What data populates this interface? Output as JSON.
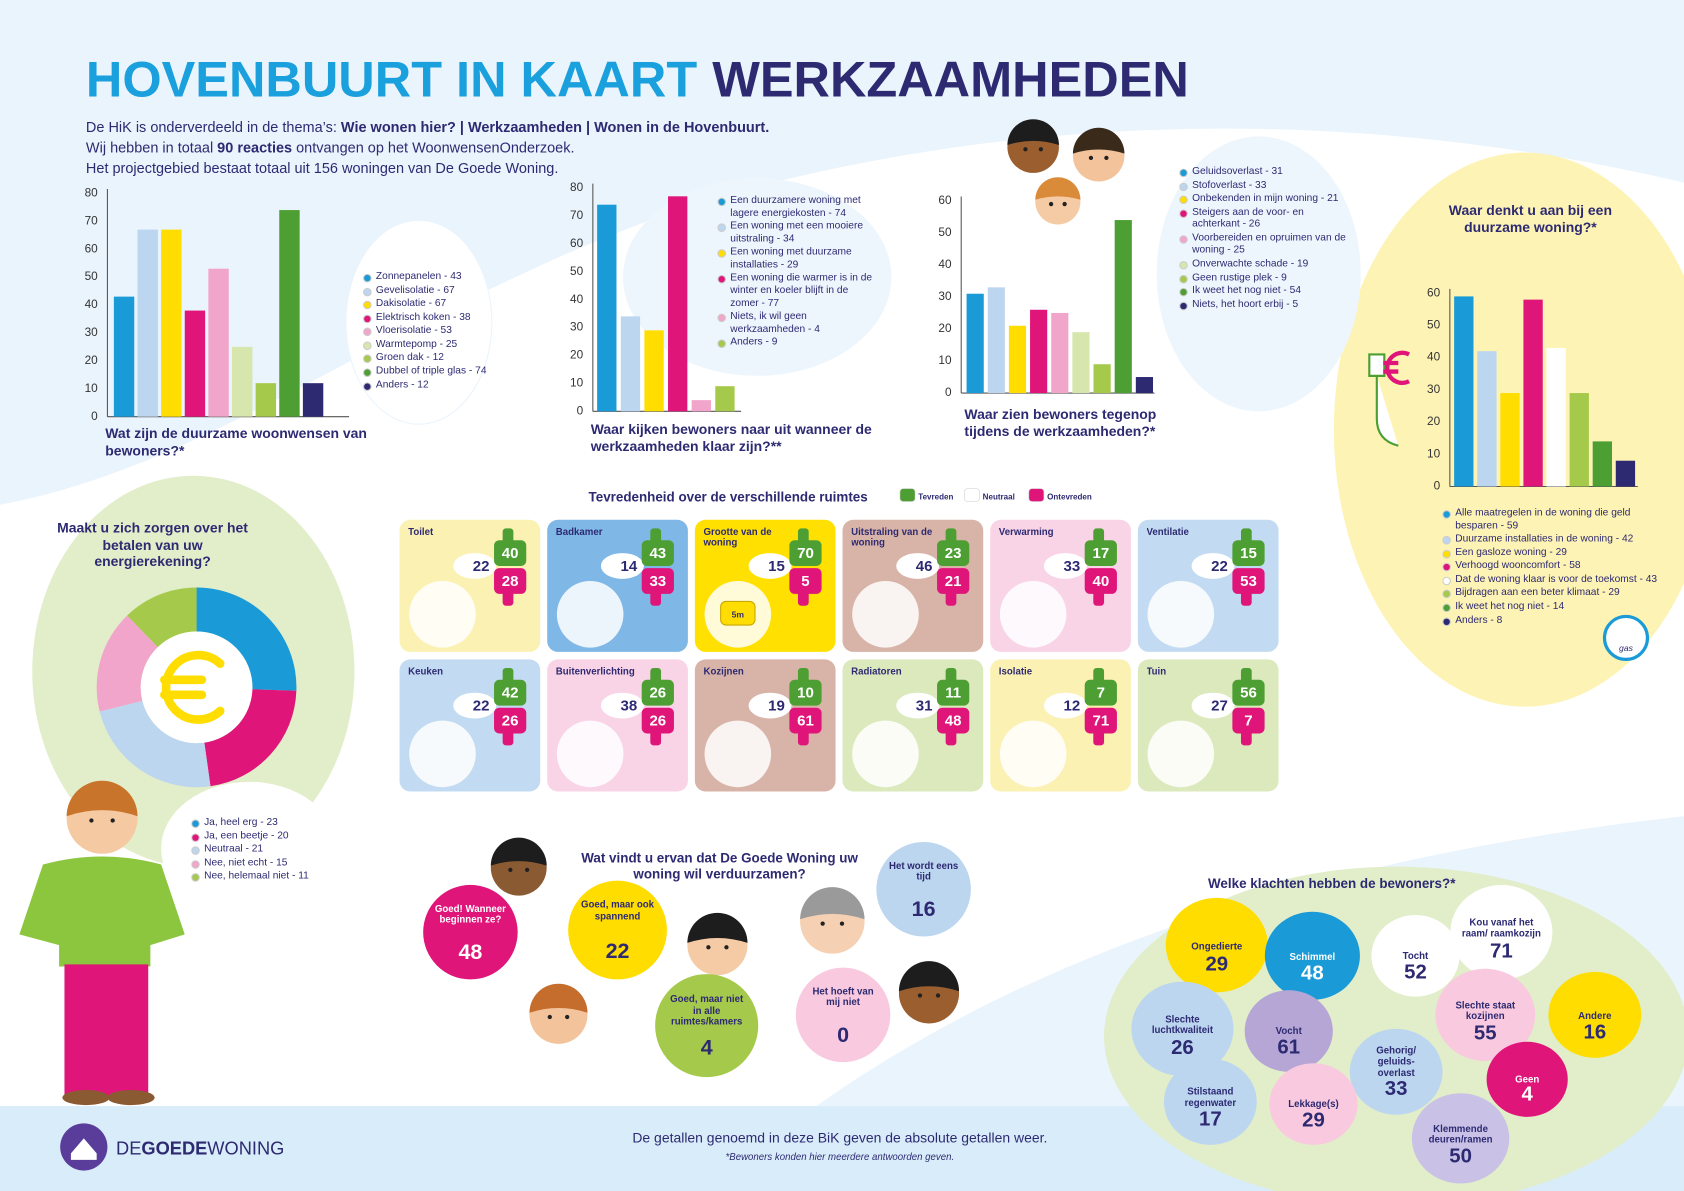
{
  "header": {
    "title_main": "HOVENBUURT IN KAART",
    "title_sub": "WERKZAAMHEDEN",
    "intro": [
      [
        {
          "text": "De HiK is onderverdeeld in de thema’s: "
        },
        {
          "text": "Wie wonen hier? | Werkzaamheden | Wonen in de Hovenbuurt.",
          "bold": true
        }
      ],
      [
        {
          "text": "Wij hebben in totaal "
        },
        {
          "text": "90 reacties",
          "bold": true
        },
        {
          "text": " ontvangen op het WoonwensenOnderzoek."
        }
      ],
      [
        {
          "text": "Het projectgebied bestaat totaal uit 156 woningen van De Goede Woning."
        }
      ]
    ]
  },
  "chart_data": [
    {
      "type": "bar",
      "title": "Wat zijn de duurzame woonwensen van bewoners?*",
      "categories": [
        "Zonnepanelen - 43",
        "Gevelisolatie - 67",
        "Dakisolatie - 67",
        "Elektrisch koken - 38",
        "Vloerisolatie - 53",
        "Warmtepomp - 25",
        "Groen dak - 12",
        "Dubbel of triple glas - 74",
        "Anders - 12"
      ],
      "values": [
        43,
        67,
        67,
        38,
        53,
        25,
        12,
        74,
        12
      ],
      "colors": [
        "#1a9ad6",
        "#bcd6f0",
        "#ffdd00",
        "#e0157a",
        "#f2a5ca",
        "#d6e6ad",
        "#a5c94a",
        "#4e9f33",
        "#2d2a72"
      ],
      "ylim": [
        0,
        80
      ],
      "yticks": [
        0,
        10,
        20,
        30,
        40,
        50,
        60,
        70,
        80
      ]
    },
    {
      "type": "bar",
      "title": "Waar kijken bewoners naar uit wanneer de werkzaamheden klaar zijn?**",
      "categories": [
        "Een duurzamere woning met lagere energiekosten - 74",
        "Een woning met een mooiere uitstraling - 34",
        "Een woning met duurzame installaties - 29",
        "Een woning die warmer is in de winter en koeler blijft in de zomer - 77",
        "Niets, ik wil geen werkzaamheden - 4",
        "Anders - 9"
      ],
      "values": [
        74,
        34,
        29,
        77,
        4,
        9
      ],
      "colors": [
        "#1a9ad6",
        "#bcd6f0",
        "#ffdd00",
        "#e0157a",
        "#f2a5ca",
        "#a5c94a"
      ],
      "ylim": [
        0,
        80
      ],
      "yticks": [
        0,
        10,
        20,
        30,
        40,
        50,
        60,
        70,
        80
      ]
    },
    {
      "type": "bar",
      "title": "Waar zien bewoners tegenop tijdens de werkzaamheden?*",
      "categories": [
        "Geluidsoverlast - 31",
        "Stofoverlast - 33",
        "Onbekenden in mijn woning - 21",
        "Steigers aan de voor- en achterkant - 26",
        "Voorbereiden en opruimen van de woning - 25",
        "Onverwachte schade - 19",
        "Geen rustige plek - 9",
        "Ik weet het nog niet - 54",
        "Niets, het hoort erbij - 5"
      ],
      "values": [
        31,
        33,
        21,
        26,
        25,
        19,
        9,
        54,
        5
      ],
      "colors": [
        "#1a9ad6",
        "#bcd6f0",
        "#ffdd00",
        "#e0157a",
        "#f2a5ca",
        "#d6e6ad",
        "#a5c94a",
        "#4e9f33",
        "#2d2a72"
      ],
      "ylim": [
        0,
        60
      ],
      "yticks": [
        0,
        10,
        20,
        30,
        40,
        50,
        60
      ]
    },
    {
      "type": "bar",
      "title": "Waar denkt u aan bij een duurzame woning?*",
      "categories": [
        "Alle maatregelen in de woning die geld besparen - 59",
        "Duurzame installaties in de woning - 42",
        "Een gasloze woning - 29",
        "Verhoogd wooncomfort - 58",
        "Dat de woning klaar is voor de toekomst - 43",
        "Bijdragen aan een beter klimaat - 29",
        "Ik weet het nog niet - 14",
        "Anders - 8"
      ],
      "values": [
        59,
        42,
        29,
        58,
        43,
        29,
        14,
        8
      ],
      "colors": [
        "#1a9ad6",
        "#bcd6f0",
        "#ffdd00",
        "#e0157a",
        "#ffffff",
        "#a5c94a",
        "#4e9f33",
        "#2d2a72"
      ],
      "ylim": [
        0,
        60
      ],
      "yticks": [
        0,
        10,
        20,
        30,
        40,
        50,
        60
      ]
    },
    {
      "type": "donut",
      "title": "Maakt u zich zorgen over het betalen van uw energierekening?",
      "categories": [
        "Ja, heel erg - 23",
        "Ja, een beetje - 20",
        "Neutraal - 21",
        "Nee, niet echt - 15",
        "Nee, helemaal niet - 11"
      ],
      "values": [
        23,
        20,
        21,
        15,
        11
      ],
      "colors": [
        "#1a9ad6",
        "#e0157a",
        "#bcd6f0",
        "#f2a5ca",
        "#a5c94a"
      ]
    }
  ],
  "satisfaction": {
    "title": "Tevredenheid over de verschillende ruimtes",
    "legend": [
      "Tevreden",
      "Neutraal",
      "Ontevreden"
    ],
    "legend_colors": [
      "#4e9f33",
      "#ffffff",
      "#e0157a"
    ],
    "rooms": [
      {
        "name": "Toilet",
        "neutral": 22,
        "satisfied": 40,
        "dissatisfied": 28,
        "color": "#fbf1b3"
      },
      {
        "name": "Badkamer",
        "neutral": 14,
        "satisfied": 43,
        "dissatisfied": 33,
        "color": "#7fb7e6"
      },
      {
        "name": "Grootte van de woning",
        "neutral": 15,
        "satisfied": 70,
        "dissatisfied": 5,
        "color": "#ffe000"
      },
      {
        "name": "Uitstraling van de woning",
        "neutral": 46,
        "satisfied": 23,
        "dissatisfied": 21,
        "color": "#d8b3a7"
      },
      {
        "name": "Verwarming",
        "neutral": 33,
        "satisfied": 17,
        "dissatisfied": 40,
        "color": "#f9d3e6"
      },
      {
        "name": "Ventilatie",
        "neutral": 22,
        "satisfied": 15,
        "dissatisfied": 53,
        "color": "#c3dbf2"
      },
      {
        "name": "Keuken",
        "neutral": 22,
        "satisfied": 42,
        "dissatisfied": 26,
        "color": "#c3dbf2"
      },
      {
        "name": "Buitenverlichting",
        "neutral": 38,
        "satisfied": 26,
        "dissatisfied": 26,
        "color": "#f9d3e6"
      },
      {
        "name": "Kozijnen",
        "neutral": 19,
        "satisfied": 10,
        "dissatisfied": 61,
        "color": "#d8b3a7"
      },
      {
        "name": "Radiatoren",
        "neutral": 31,
        "satisfied": 11,
        "dissatisfied": 48,
        "color": "#dbe9bd"
      },
      {
        "name": "Isolatie",
        "neutral": 12,
        "satisfied": 7,
        "dissatisfied": 71,
        "color": "#fbf1b3"
      },
      {
        "name": "Tuin",
        "neutral": 27,
        "satisfied": 56,
        "dissatisfied": 7,
        "color": "#dbe9bd"
      }
    ]
  },
  "opinion": {
    "title": "Wat vindt u ervan dat De Goede Woning uw woning wil verduurzamen?",
    "answers": [
      {
        "label": "Goed! Wanneer beginnen ze?",
        "value": 48,
        "color": "#e0157a"
      },
      {
        "label": "Goed, maar ook spannend",
        "value": 22,
        "color": "#ffdd00"
      },
      {
        "label": "Goed, maar niet in alle ruimtes/kamers",
        "value": 4,
        "color": "#a5c94a"
      },
      {
        "label": "Het hoeft van mij niet",
        "value": 0,
        "color": "#f9c9df"
      },
      {
        "label": "Het wordt eens tijd",
        "value": 16,
        "color": "#bcd6f0"
      }
    ]
  },
  "complaints": {
    "title": "Welke klachten hebben de bewoners?*",
    "items": [
      {
        "label": "Ongedierte",
        "value": 29,
        "color": "#ffdd00"
      },
      {
        "label": "Schimmel",
        "value": 48,
        "color": "#1a9ad6"
      },
      {
        "label": "Tocht",
        "value": 52,
        "color": "#ffffff"
      },
      {
        "label": "Kou vanaf het raam/ raamkozijn",
        "value": 71,
        "color": "#ffffff"
      },
      {
        "label": "Slechte luchtkwaliteit",
        "value": 26,
        "color": "#bcd6f0"
      },
      {
        "label": "Vocht",
        "value": 61,
        "color": "#b5a6d6"
      },
      {
        "label": "Slechte staat kozijnen",
        "value": 55,
        "color": "#f9c9df"
      },
      {
        "label": "Andere",
        "value": 16,
        "color": "#ffdd00"
      },
      {
        "label": "Gehorig/ geluids-overlast",
        "value": 33,
        "color": "#bcd6f0"
      },
      {
        "label": "Geen",
        "value": 4,
        "color": "#e0157a"
      },
      {
        "label": "Stilstaand regenwater",
        "value": 17,
        "color": "#bcd6f0"
      },
      {
        "label": "Lekkage(s)",
        "value": 29,
        "color": "#f9c9df"
      },
      {
        "label": "Klemmende deuren/ramen",
        "value": 50,
        "color": "#c9c2e6"
      }
    ]
  },
  "icon_labels": {
    "tape": "5m",
    "gauge": "gas"
  },
  "footer": {
    "logo": [
      "DE",
      "GOEDE",
      "WONING"
    ],
    "note": "De getallen genoemd in deze BiK geven de absolute getallen weer.",
    "footnote": "*Bewoners konden hier meerdere antwoorden geven."
  }
}
